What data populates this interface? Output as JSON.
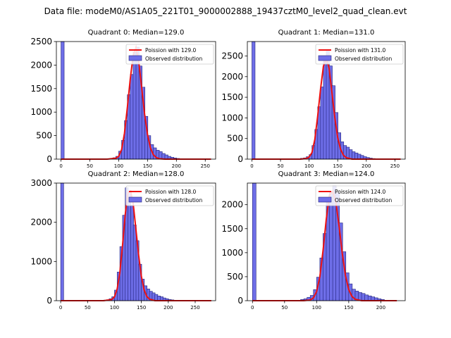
{
  "suptitle": "Data file: modeM0/AS1A05_221T01_9000002888_19437cztM0_level2_quad_clean.evt",
  "chart_data": [
    {
      "type": "bar",
      "title": "Quadrant 0: Median=129.0",
      "xlim": [
        -8,
        268
      ],
      "ylim": [
        0,
        2500
      ],
      "xticks": [
        0,
        50,
        100,
        150,
        200,
        250
      ],
      "yticks": [
        0,
        500,
        1000,
        1500,
        2000,
        2500
      ],
      "bin_width": 5.5,
      "bins": [
        [
          0,
          2500
        ],
        [
          80,
          10
        ],
        [
          85,
          15
        ],
        [
          90,
          30
        ],
        [
          95,
          60
        ],
        [
          100,
          170
        ],
        [
          105,
          400
        ],
        [
          110,
          820
        ],
        [
          115,
          1370
        ],
        [
          120,
          1800
        ],
        [
          125,
          2280
        ],
        [
          130,
          2380
        ],
        [
          135,
          1980
        ],
        [
          140,
          1530
        ],
        [
          145,
          910
        ],
        [
          150,
          500
        ],
        [
          155,
          310
        ],
        [
          160,
          240
        ],
        [
          165,
          190
        ],
        [
          170,
          160
        ],
        [
          175,
          120
        ],
        [
          180,
          90
        ],
        [
          185,
          60
        ],
        [
          190,
          40
        ],
        [
          195,
          25
        ],
        [
          200,
          15
        ],
        [
          205,
          10
        ]
      ],
      "fit": [
        [
          0,
          0
        ],
        [
          80,
          0
        ],
        [
          95,
          20
        ],
        [
          100,
          60
        ],
        [
          105,
          200
        ],
        [
          110,
          550
        ],
        [
          115,
          1100
        ],
        [
          120,
          1700
        ],
        [
          125,
          2200
        ],
        [
          130,
          2380
        ],
        [
          135,
          2050
        ],
        [
          140,
          1500
        ],
        [
          145,
          950
        ],
        [
          150,
          520
        ],
        [
          155,
          240
        ],
        [
          160,
          95
        ],
        [
          165,
          35
        ],
        [
          170,
          10
        ],
        [
          180,
          0
        ],
        [
          260,
          0
        ]
      ],
      "legend": [
        "Poission with 129.0",
        "Observed distribution"
      ]
    },
    {
      "type": "bar",
      "title": "Quadrant 1: Median=131.0",
      "xlim": [
        -8,
        268
      ],
      "ylim": [
        0,
        2850
      ],
      "xticks": [
        0,
        50,
        100,
        150,
        200,
        250
      ],
      "yticks": [
        0,
        500,
        1000,
        1500,
        2000,
        2500
      ],
      "bin_width": 5.5,
      "bins": [
        [
          0,
          2850
        ],
        [
          85,
          20
        ],
        [
          90,
          30
        ],
        [
          95,
          60
        ],
        [
          100,
          110
        ],
        [
          105,
          330
        ],
        [
          110,
          720
        ],
        [
          115,
          1270
        ],
        [
          120,
          1750
        ],
        [
          125,
          2380
        ],
        [
          130,
          2650
        ],
        [
          135,
          2260
        ],
        [
          140,
          1780
        ],
        [
          145,
          1130
        ],
        [
          150,
          640
        ],
        [
          155,
          420
        ],
        [
          160,
          330
        ],
        [
          165,
          290
        ],
        [
          170,
          230
        ],
        [
          175,
          180
        ],
        [
          180,
          150
        ],
        [
          185,
          120
        ],
        [
          190,
          90
        ],
        [
          195,
          60
        ],
        [
          200,
          40
        ],
        [
          205,
          25
        ],
        [
          210,
          15
        ]
      ],
      "fit": [
        [
          0,
          0
        ],
        [
          85,
          0
        ],
        [
          95,
          15
        ],
        [
          100,
          50
        ],
        [
          105,
          160
        ],
        [
          110,
          480
        ],
        [
          115,
          1050
        ],
        [
          120,
          1700
        ],
        [
          125,
          2250
        ],
        [
          130,
          2450
        ],
        [
          135,
          2200
        ],
        [
          140,
          1600
        ],
        [
          145,
          1000
        ],
        [
          150,
          520
        ],
        [
          155,
          240
        ],
        [
          160,
          95
        ],
        [
          165,
          35
        ],
        [
          175,
          0
        ],
        [
          260,
          0
        ]
      ],
      "legend": [
        "Poission with 131.0",
        "Observed distribution"
      ]
    },
    {
      "type": "bar",
      "title": "Quadrant 2: Median=128.0",
      "xlim": [
        -8,
        288
      ],
      "ylim": [
        0,
        3000
      ],
      "xticks": [
        0,
        50,
        100,
        150,
        200,
        250
      ],
      "yticks": [
        0,
        1000,
        2000,
        3000
      ],
      "bin_width": 5.5,
      "bins": [
        [
          0,
          3000
        ],
        [
          80,
          15
        ],
        [
          85,
          25
        ],
        [
          90,
          50
        ],
        [
          95,
          100
        ],
        [
          100,
          270
        ],
        [
          105,
          730
        ],
        [
          110,
          1380
        ],
        [
          115,
          2180
        ],
        [
          120,
          2880
        ],
        [
          125,
          2780
        ],
        [
          130,
          2430
        ],
        [
          135,
          1930
        ],
        [
          140,
          1530
        ],
        [
          145,
          930
        ],
        [
          150,
          550
        ],
        [
          155,
          380
        ],
        [
          160,
          300
        ],
        [
          165,
          240
        ],
        [
          170,
          200
        ],
        [
          175,
          160
        ],
        [
          180,
          120
        ],
        [
          185,
          100
        ],
        [
          190,
          70
        ],
        [
          195,
          50
        ],
        [
          200,
          30
        ],
        [
          205,
          20
        ],
        [
          210,
          10
        ]
      ],
      "fit": [
        [
          0,
          0
        ],
        [
          80,
          0
        ],
        [
          95,
          30
        ],
        [
          100,
          100
        ],
        [
          105,
          300
        ],
        [
          110,
          720
        ],
        [
          115,
          1420
        ],
        [
          120,
          2200
        ],
        [
          125,
          2750
        ],
        [
          130,
          2800
        ],
        [
          135,
          2450
        ],
        [
          140,
          1800
        ],
        [
          145,
          1150
        ],
        [
          150,
          620
        ],
        [
          155,
          280
        ],
        [
          160,
          110
        ],
        [
          165,
          40
        ],
        [
          175,
          0
        ],
        [
          280,
          0
        ]
      ],
      "legend": [
        "Poission with 128.0",
        "Observed distribution"
      ]
    },
    {
      "type": "bar",
      "title": "Quadrant 3: Median=124.0",
      "xlim": [
        -8,
        238
      ],
      "ylim": [
        0,
        2450
      ],
      "xticks": [
        0,
        50,
        100,
        150,
        200
      ],
      "yticks": [
        0,
        500,
        1000,
        1500,
        2000
      ],
      "bin_width": 5.5,
      "bins": [
        [
          0,
          2450
        ],
        [
          70,
          10
        ],
        [
          75,
          25
        ],
        [
          80,
          40
        ],
        [
          85,
          70
        ],
        [
          90,
          110
        ],
        [
          95,
          230
        ],
        [
          100,
          490
        ],
        [
          105,
          890
        ],
        [
          110,
          1400
        ],
        [
          115,
          2050
        ],
        [
          120,
          2280
        ],
        [
          125,
          2390
        ],
        [
          130,
          2250
        ],
        [
          135,
          1620
        ],
        [
          140,
          1020
        ],
        [
          145,
          580
        ],
        [
          150,
          350
        ],
        [
          155,
          240
        ],
        [
          160,
          200
        ],
        [
          165,
          170
        ],
        [
          170,
          150
        ],
        [
          175,
          120
        ],
        [
          180,
          100
        ],
        [
          185,
          80
        ],
        [
          190,
          60
        ],
        [
          195,
          40
        ],
        [
          200,
          25
        ]
      ],
      "fit": [
        [
          0,
          0
        ],
        [
          80,
          0
        ],
        [
          90,
          15
        ],
        [
          95,
          60
        ],
        [
          100,
          190
        ],
        [
          105,
          500
        ],
        [
          110,
          1050
        ],
        [
          115,
          1700
        ],
        [
          120,
          2200
        ],
        [
          125,
          2280
        ],
        [
          130,
          2050
        ],
        [
          135,
          1550
        ],
        [
          140,
          980
        ],
        [
          145,
          520
        ],
        [
          150,
          230
        ],
        [
          155,
          90
        ],
        [
          160,
          30
        ],
        [
          170,
          0
        ],
        [
          225,
          0
        ]
      ],
      "legend": [
        "Poission with 124.0",
        "Observed distribution"
      ]
    }
  ]
}
